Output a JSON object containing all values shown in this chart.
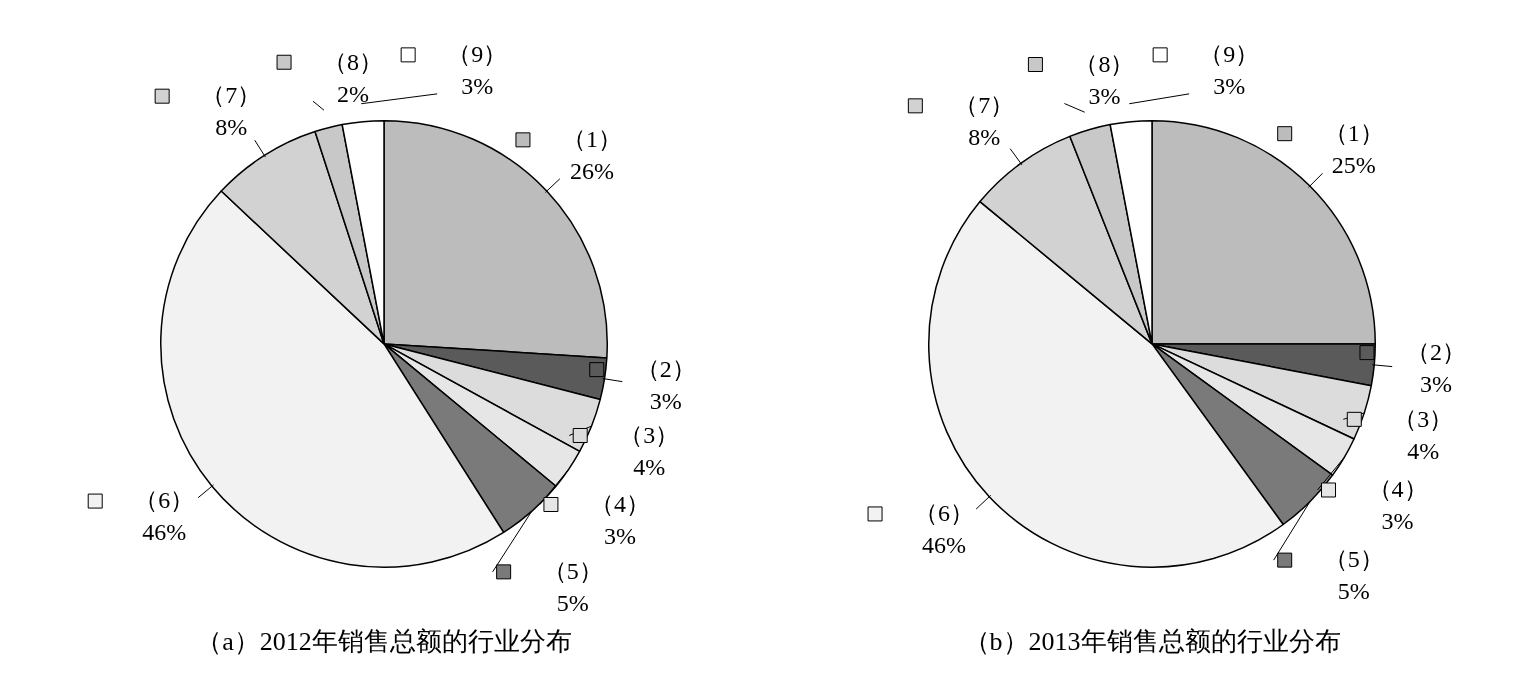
{
  "chart_data": [
    {
      "type": "pie",
      "title": "（a）2012年销售总额的行业分布",
      "categories": [
        "（1）",
        "（2）",
        "（3）",
        "（4）",
        "（5）",
        "（6）",
        "（7）",
        "（8）",
        "（9）"
      ],
      "values": [
        26,
        3,
        4,
        3,
        5,
        46,
        8,
        2,
        3
      ],
      "value_labels": [
        "26%",
        "3%",
        "4%",
        "3%",
        "5%",
        "46%",
        "8%",
        "2%",
        "3%"
      ],
      "colors": [
        "#bcbcbc",
        "#5a5a5a",
        "#dcdcdc",
        "#e6e6e6",
        "#7a7a7a",
        "#f2f2f2",
        "#d2d2d2",
        "#c8c8c8",
        "#ffffff"
      ],
      "legend": "right"
    },
    {
      "type": "pie",
      "title": "（b）2013年销售总额的行业分布",
      "categories": [
        "（1）",
        "（2）",
        "（3）",
        "（4）",
        "（5）",
        "（6）",
        "（7）",
        "（8）",
        "（9）"
      ],
      "values": [
        25,
        3,
        4,
        3,
        5,
        46,
        8,
        3,
        3
      ],
      "value_labels": [
        "25%",
        "3%",
        "4%",
        "3%",
        "5%",
        "46%",
        "8%",
        "3%",
        "3%"
      ],
      "colors": [
        "#bcbcbc",
        "#5a5a5a",
        "#dcdcdc",
        "#e6e6e6",
        "#7a7a7a",
        "#f2f2f2",
        "#d2d2d2",
        "#c8c8c8",
        "#ffffff"
      ],
      "legend": "right"
    }
  ]
}
